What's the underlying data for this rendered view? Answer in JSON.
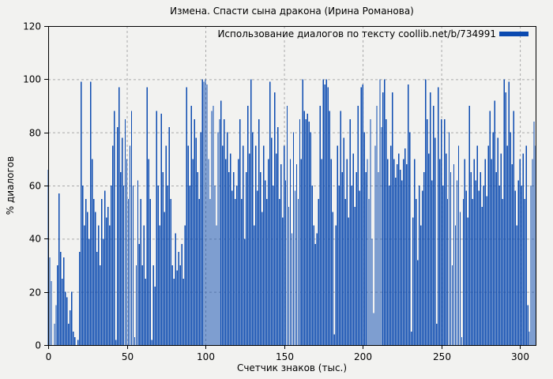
{
  "page": {
    "background": "#f2f2f0"
  },
  "chart_data": {
    "type": "bar",
    "title": "Измена. Спасти сына дракона (Ирина Романова)",
    "legend": "Использование диалогов по тексту coollib.net/b/734991",
    "xlabel": "Счетчик знаков (тыс.)",
    "ylabel": "% диалогов",
    "xlim": [
      0,
      310
    ],
    "ylim": [
      0,
      120
    ],
    "xticks": [
      0,
      50,
      100,
      150,
      200,
      250,
      300
    ],
    "yticks": [
      0,
      20,
      40,
      60,
      80,
      100,
      120
    ],
    "grid": true,
    "legend_position": "top-right-inside",
    "x_step": 1,
    "colors": {
      "bar": "#0b4ab0",
      "grid": "#aaaaaa",
      "axis": "#000000",
      "text": "#000000",
      "background": "#f2f2f0"
    },
    "values": [
      66,
      33,
      24,
      0,
      8,
      15,
      30,
      57,
      35,
      25,
      33,
      20,
      18,
      8,
      13,
      20,
      5,
      3,
      0,
      2,
      35,
      99,
      60,
      45,
      55,
      50,
      40,
      99,
      70,
      55,
      50,
      35,
      45,
      30,
      55,
      40,
      58,
      48,
      52,
      45,
      60,
      75,
      88,
      2,
      82,
      97,
      65,
      78,
      60,
      85,
      70,
      55,
      75,
      88,
      60,
      3,
      30,
      62,
      38,
      55,
      30,
      45,
      25,
      97,
      70,
      55,
      2,
      30,
      22,
      88,
      60,
      45,
      87,
      65,
      50,
      75,
      60,
      82,
      55,
      30,
      25,
      42,
      28,
      35,
      30,
      38,
      25,
      45,
      97,
      75,
      60,
      90,
      70,
      85,
      78,
      65,
      55,
      80,
      100,
      99,
      100,
      98,
      70,
      55,
      88,
      90,
      60,
      45,
      80,
      85,
      92,
      75,
      85,
      70,
      80,
      65,
      72,
      58,
      65,
      55,
      60,
      70,
      85,
      55,
      75,
      40,
      65,
      90,
      72,
      100,
      80,
      45,
      75,
      58,
      85,
      65,
      50,
      75,
      62,
      55,
      70,
      99,
      78,
      60,
      95,
      72,
      82,
      55,
      68,
      48,
      75,
      62,
      90,
      52,
      70,
      42,
      80,
      58,
      68,
      55,
      85,
      70,
      100,
      88,
      85,
      87,
      84,
      80,
      60,
      45,
      38,
      42,
      55,
      90,
      70,
      100,
      98,
      100,
      97,
      88,
      70,
      50,
      4,
      45,
      75,
      60,
      88,
      65,
      78,
      55,
      70,
      48,
      85,
      60,
      72,
      52,
      65,
      90,
      58,
      97,
      98,
      80,
      65,
      70,
      55,
      85,
      40,
      12,
      75,
      90,
      65,
      100,
      82,
      95,
      100,
      85,
      70,
      60,
      75,
      95,
      70,
      63,
      68,
      72,
      66,
      62,
      70,
      74,
      68,
      98,
      80,
      5,
      48,
      70,
      55,
      32,
      60,
      45,
      58,
      65,
      100,
      85,
      72,
      95,
      62,
      90,
      78,
      8,
      97,
      70,
      85,
      60,
      85,
      72,
      55,
      80,
      65,
      30,
      68,
      45,
      62,
      75,
      50,
      3,
      55,
      70,
      58,
      48,
      90,
      65,
      55,
      70,
      62,
      75,
      58,
      65,
      52,
      60,
      70,
      56,
      75,
      88,
      70,
      80,
      92,
      65,
      78,
      60,
      72,
      55,
      100,
      95,
      75,
      99,
      80,
      68,
      88,
      58,
      45,
      62,
      70,
      60,
      72,
      55,
      75,
      15,
      5,
      60,
      70,
      84,
      75
    ]
  }
}
